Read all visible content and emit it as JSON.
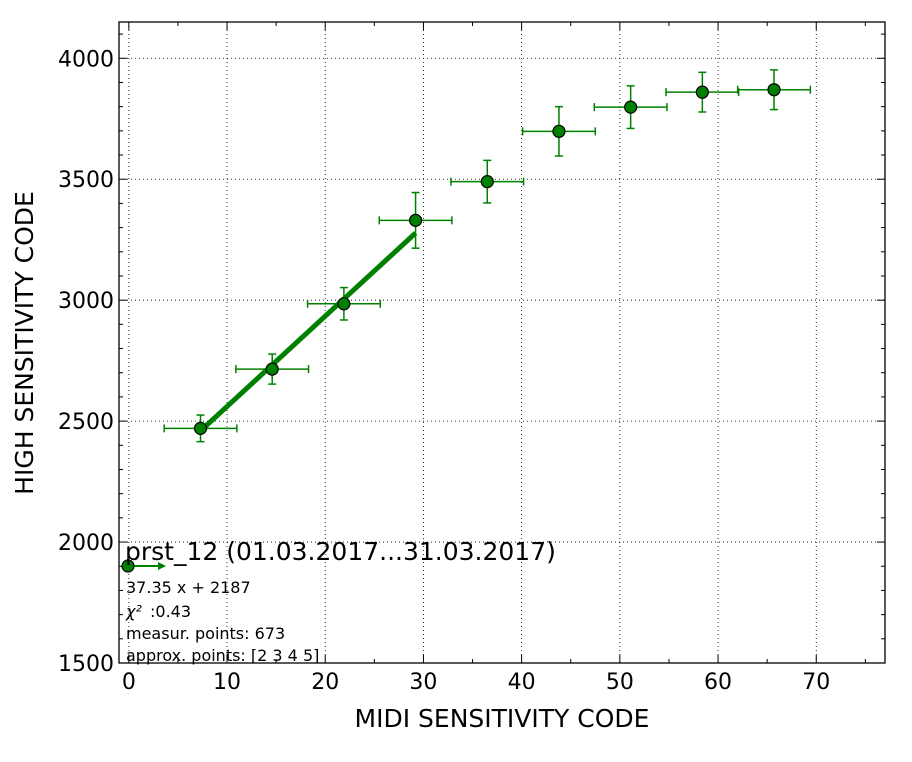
{
  "chart_data": {
    "type": "scatter",
    "xlabel": "MIDI SENSITIVITY CODE",
    "ylabel": "HIGH SENSITIVITY CODE",
    "xlim": [
      -1,
      77
    ],
    "ylim": [
      1500,
      4150
    ],
    "xticks": [
      0,
      10,
      20,
      30,
      40,
      50,
      60,
      70
    ],
    "yticks": [
      1500,
      2000,
      2500,
      3000,
      3500,
      4000
    ],
    "grid": true,
    "color": "#008000",
    "series": [
      {
        "points": [
          {
            "x": 7.3,
            "y": 2470,
            "xerr": 3.7,
            "yerr": 55
          },
          {
            "x": 14.6,
            "y": 2715,
            "xerr": 3.7,
            "yerr": 62
          },
          {
            "x": 21.9,
            "y": 2985,
            "xerr": 3.7,
            "yerr": 67
          },
          {
            "x": 29.2,
            "y": 3330,
            "xerr": 3.7,
            "yerr": 115
          },
          {
            "x": 36.5,
            "y": 3490,
            "xerr": 3.7,
            "yerr": 88
          },
          {
            "x": 43.8,
            "y": 3698,
            "xerr": 3.7,
            "yerr": 102
          },
          {
            "x": 51.1,
            "y": 3798,
            "xerr": 3.7,
            "yerr": 88
          },
          {
            "x": 58.4,
            "y": 3860,
            "xerr": 3.7,
            "yerr": 82
          },
          {
            "x": 65.7,
            "y": 3870,
            "xerr": 3.7,
            "yerr": 82
          }
        ]
      }
    ],
    "fit": {
      "slope": 37.35,
      "intercept": 2187,
      "x_from": 7.3,
      "x_to": 29.2
    },
    "legend": {
      "placement": "lower-left",
      "title": "prst_12 (01.03.2017...31.03.2017)",
      "equation": "37.35 x + 2187",
      "chi2_symbol": "χ²",
      "chi2_value": ":0.43",
      "measur_points": "measur. points: 673",
      "approx_points": "approx. points: [2 3 4 5]"
    }
  }
}
